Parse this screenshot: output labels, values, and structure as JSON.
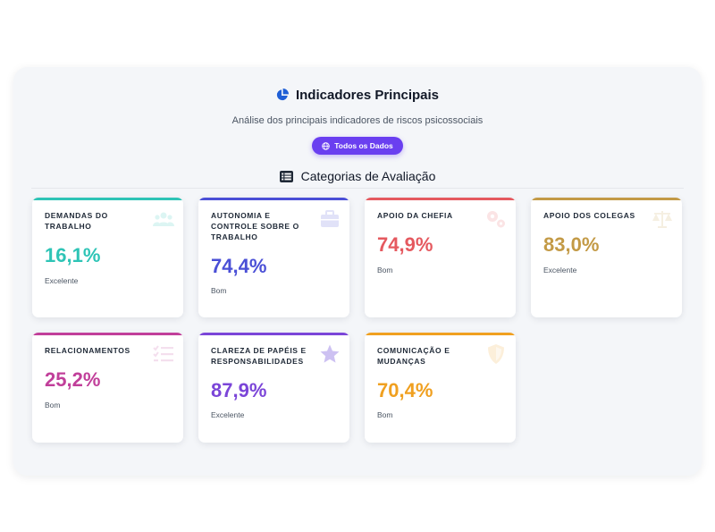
{
  "header": {
    "title": "Indicadores Principais",
    "subtitle": "Análise dos principais indicadores de riscos psicossociais",
    "filter_button": "Todos os Dados"
  },
  "section": {
    "title": "Categorias de Avaliação"
  },
  "colors": {
    "teal": "#2ec4b6",
    "indigo": "#4a4fd6",
    "red": "#e5595f",
    "gold": "#c39a46",
    "magenta": "#c13f9a",
    "violet": "#7b45d8",
    "orange": "#f0a020",
    "accent": "#6a3ff0"
  },
  "cards": [
    {
      "name": "Demandas do Trabalho",
      "value": "16,1%",
      "level": "Excelente",
      "color": "#2ec4b6",
      "icon": "users-icon"
    },
    {
      "name": "Autonomia e Controle sobre o Trabalho",
      "value": "74,4%",
      "level": "Bom",
      "color": "#4a4fd6",
      "icon": "briefcase-icon"
    },
    {
      "name": "Apoio da Chefia",
      "value": "74,9%",
      "level": "Bom",
      "color": "#e5595f",
      "icon": "gears-icon"
    },
    {
      "name": "Apoio dos Colegas",
      "value": "83,0%",
      "level": "Excelente",
      "color": "#c39a46",
      "icon": "scale-icon"
    },
    {
      "name": "Relacionamentos",
      "value": "25,2%",
      "level": "Bom",
      "color": "#c13f9a",
      "icon": "list-check-icon"
    },
    {
      "name": "Clareza de Papéis e Responsabilidades",
      "value": "87,9%",
      "level": "Excelente",
      "color": "#7b45d8",
      "icon": "star-icon"
    },
    {
      "name": "Comunicação e Mudanças",
      "value": "70,4%",
      "level": "Bom",
      "color": "#f0a020",
      "icon": "shield-icon"
    }
  ]
}
